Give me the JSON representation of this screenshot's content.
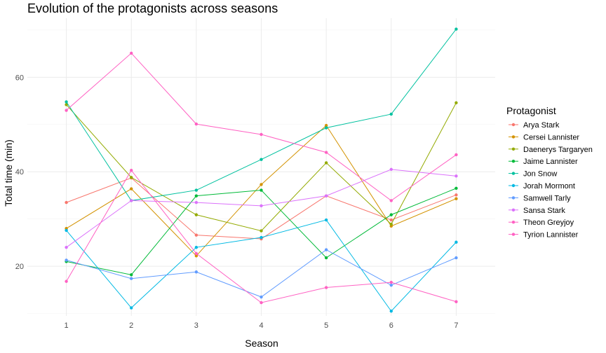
{
  "chart_data": {
    "type": "line",
    "title": "Evolution of the protagonists across seasons",
    "xlabel": "Season",
    "ylabel": "Total time (min)",
    "x": [
      1,
      2,
      3,
      4,
      5,
      6,
      7
    ],
    "xlim": [
      0.4,
      7.6
    ],
    "ylim": [
      9.5,
      72.5
    ],
    "yticks": [
      20,
      40,
      60
    ],
    "grid": true,
    "legend": {
      "title": "Protagonist",
      "position": "right"
    },
    "series": [
      {
        "name": "Arya Stark",
        "color": "#F8766D",
        "values": [
          33.5,
          38.7,
          26.6,
          25.8,
          34.9,
          29.8,
          35.1
        ]
      },
      {
        "name": "Cersei Lannister",
        "color": "#D39200",
        "values": [
          28.0,
          36.4,
          22.2,
          37.3,
          49.8,
          28.5,
          34.3
        ]
      },
      {
        "name": "Daenerys Targaryen",
        "color": "#93AA00",
        "values": [
          54.2,
          38.8,
          30.9,
          27.5,
          41.9,
          28.9,
          54.6
        ]
      },
      {
        "name": "Jaime Lannister",
        "color": "#00BA38",
        "values": [
          21.0,
          18.2,
          34.9,
          36.1,
          21.8,
          30.9,
          36.5
        ]
      },
      {
        "name": "Jon Snow",
        "color": "#00C19F",
        "values": [
          54.8,
          33.9,
          36.1,
          42.6,
          49.3,
          52.2,
          70.2
        ]
      },
      {
        "name": "Jorah Mormont",
        "color": "#00B9E3",
        "values": [
          27.6,
          11.2,
          24.0,
          26.1,
          29.8,
          10.5,
          25.1
        ]
      },
      {
        "name": "Samwell Tarly",
        "color": "#619CFF",
        "values": [
          21.3,
          17.4,
          18.8,
          13.5,
          23.5,
          16.0,
          21.8
        ]
      },
      {
        "name": "Sansa Stark",
        "color": "#DB72FB",
        "values": [
          24.0,
          33.9,
          33.5,
          32.8,
          34.9,
          40.5,
          39.1
        ]
      },
      {
        "name": "Theon Greyjoy",
        "color": "#FF61C3",
        "values": [
          16.8,
          40.3,
          22.7,
          12.3,
          15.5,
          16.6,
          12.5
        ]
      },
      {
        "name": "Tyrion Lannister",
        "color": "#FF61C3",
        "values": [
          53.0,
          65.1,
          50.1,
          47.9,
          44.1,
          33.9,
          43.6
        ]
      }
    ]
  }
}
